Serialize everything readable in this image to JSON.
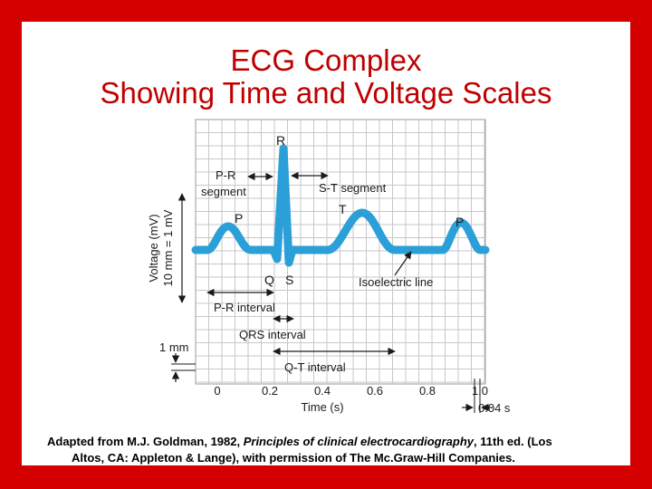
{
  "title": {
    "line1": "ECG Complex",
    "line2": "Showing Time and Voltage Scales"
  },
  "diagram": {
    "wave_labels": {
      "P1": "P",
      "Q": "Q",
      "R": "R",
      "S": "S",
      "T": "T",
      "P2": "P"
    },
    "pr_segment": [
      "P-R",
      "segment"
    ],
    "st_segment": "S-T segment",
    "isoelectric": "Isoelectric line",
    "pr_interval": "P-R interval",
    "qrs_interval": "QRS interval",
    "qt_interval": "Q-T interval",
    "voltage_label": [
      "Voltage (mV)",
      "10 mm = 1 mV"
    ],
    "one_mm": "1 mm",
    "x_ticks": [
      "0",
      "0.2",
      "0.4",
      "0.6",
      "0.8",
      "1.0"
    ],
    "x_label": "Time (s)",
    "small_box": "0.04 s",
    "colors": {
      "wave": "#2b9fd8",
      "grid": "#c7c7c7",
      "title": "#c00000",
      "border": "#d40000"
    }
  },
  "caption": {
    "part1": "Adapted from M.J. Goldman, 1982, ",
    "italic": "Principles of clinical electrocardiography",
    "part2": ", 11th ed. (Los",
    "line2": "Altos, CA: Appleton & Lange), with permission of The Mc.Graw-Hill Companies."
  }
}
